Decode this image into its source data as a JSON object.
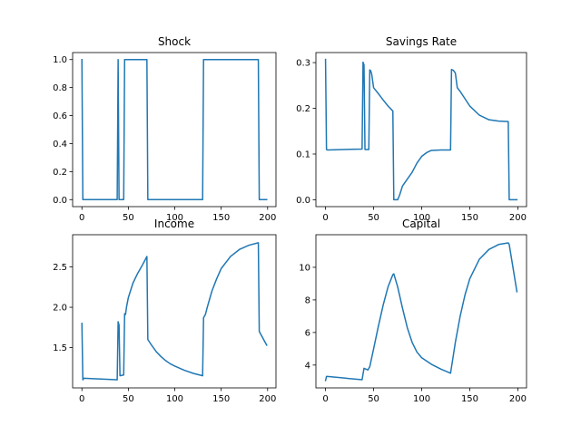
{
  "figure": {
    "line_color": "#1f77b4"
  },
  "chart_data": [
    {
      "type": "line",
      "title": "Shock",
      "xlim": [
        -10,
        209
      ],
      "ylim": [
        -0.05,
        1.05
      ],
      "xticks": [
        0,
        50,
        100,
        150,
        200
      ],
      "yticks": [
        0.0,
        0.2,
        0.4,
        0.6,
        0.8,
        1.0
      ],
      "yticks_labels": [
        "0.0",
        "0.2",
        "0.4",
        "0.6",
        "0.8",
        "1.0"
      ],
      "series": [
        {
          "x": [
            0,
            1,
            2,
            38,
            39,
            40,
            41,
            45,
            46,
            70,
            71,
            130,
            131,
            190,
            191,
            199
          ],
          "y": [
            1,
            0,
            0,
            0,
            1,
            0,
            0,
            0,
            1,
            1,
            0,
            0,
            1,
            1,
            0,
            0
          ]
        }
      ]
    },
    {
      "type": "line",
      "title": "Savings Rate",
      "xlim": [
        -10,
        209
      ],
      "ylim": [
        -0.015,
        0.322
      ],
      "xticks": [
        0,
        50,
        100,
        150,
        200
      ],
      "yticks": [
        0.0,
        0.1,
        0.2,
        0.3
      ],
      "yticks_labels": [
        "0.0",
        "0.1",
        "0.2",
        "0.3"
      ],
      "series": [
        {
          "x": [
            0,
            1,
            2,
            38,
            39,
            40,
            41,
            44,
            45,
            46,
            47,
            48,
            50,
            55,
            60,
            65,
            70,
            71,
            75,
            77,
            80,
            85,
            90,
            95,
            100,
            105,
            110,
            120,
            130,
            131,
            133,
            135,
            137,
            140,
            150,
            160,
            170,
            180,
            190,
            191,
            199
          ],
          "y": [
            0.307,
            0.11,
            0.109,
            0.111,
            0.301,
            0.295,
            0.11,
            0.11,
            0.11,
            0.284,
            0.282,
            0.275,
            0.245,
            0.232,
            0.218,
            0.205,
            0.194,
            0.0,
            0.0,
            0.01,
            0.03,
            0.045,
            0.06,
            0.08,
            0.095,
            0.103,
            0.108,
            0.109,
            0.109,
            0.285,
            0.283,
            0.277,
            0.245,
            0.237,
            0.205,
            0.185,
            0.175,
            0.172,
            0.171,
            0.0,
            0.0
          ]
        }
      ]
    },
    {
      "type": "line",
      "title": "Income",
      "xlim": [
        -10,
        209
      ],
      "ylim": [
        1.0,
        2.9
      ],
      "xticks": [
        0,
        50,
        100,
        150,
        200
      ],
      "yticks": [
        1.5,
        2.0,
        2.5
      ],
      "yticks_labels": [
        "1.5",
        "2.0",
        "2.5"
      ],
      "series": [
        {
          "x": [
            0,
            1,
            2,
            38,
            39,
            40,
            41,
            45,
            46,
            47,
            48,
            50,
            55,
            60,
            65,
            70,
            71,
            75,
            80,
            85,
            90,
            95,
            100,
            110,
            120,
            130,
            131,
            133,
            135,
            140,
            145,
            150,
            160,
            170,
            180,
            190,
            191,
            199
          ],
          "y": [
            1.8,
            1.1,
            1.12,
            1.1,
            1.82,
            1.78,
            1.15,
            1.16,
            1.92,
            1.91,
            2.0,
            2.12,
            2.3,
            2.42,
            2.52,
            2.63,
            1.6,
            1.53,
            1.45,
            1.39,
            1.34,
            1.3,
            1.27,
            1.22,
            1.18,
            1.15,
            1.87,
            1.91,
            2.0,
            2.2,
            2.35,
            2.48,
            2.63,
            2.72,
            2.77,
            2.8,
            1.7,
            1.53
          ]
        }
      ]
    },
    {
      "type": "line",
      "title": "Capital",
      "xlim": [
        -10,
        209
      ],
      "ylim": [
        2.6,
        12.0
      ],
      "xticks": [
        0,
        50,
        100,
        150,
        200
      ],
      "yticks": [
        4,
        6,
        8,
        10
      ],
      "yticks_labels": [
        "4",
        "6",
        "8",
        "10"
      ],
      "series": [
        {
          "x": [
            0,
            1,
            2,
            38,
            40,
            42,
            44,
            46,
            50,
            55,
            60,
            65,
            70,
            71,
            75,
            80,
            85,
            90,
            95,
            100,
            110,
            120,
            130,
            135,
            140,
            145,
            150,
            160,
            170,
            180,
            190,
            191,
            199
          ],
          "y": [
            3.05,
            3.3,
            3.3,
            3.1,
            3.8,
            3.75,
            3.7,
            3.9,
            5.0,
            6.4,
            7.7,
            8.8,
            9.55,
            9.6,
            8.8,
            7.5,
            6.3,
            5.4,
            4.8,
            4.45,
            4.05,
            3.75,
            3.5,
            5.4,
            7.0,
            8.3,
            9.3,
            10.5,
            11.1,
            11.4,
            11.5,
            11.4,
            8.5
          ]
        }
      ]
    }
  ]
}
